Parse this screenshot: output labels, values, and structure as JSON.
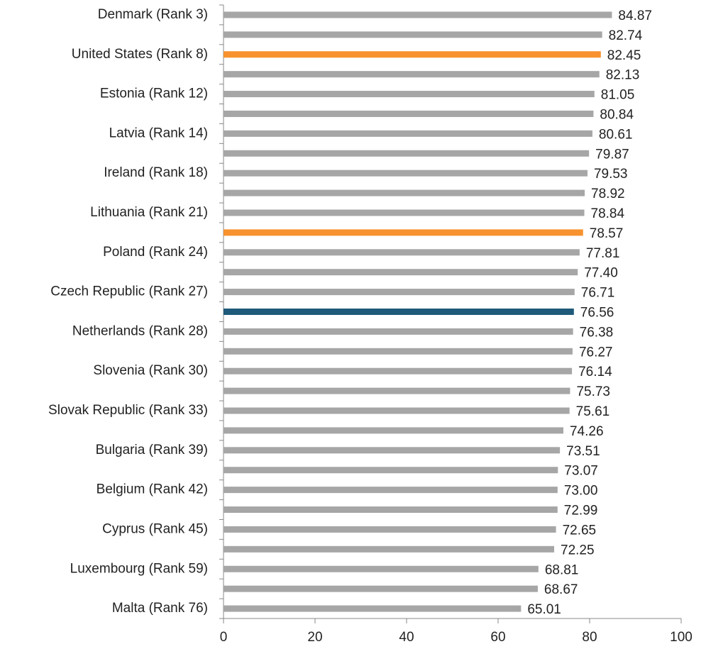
{
  "chart_data": {
    "type": "hbar",
    "categories": [
      "Denmark (Rank 3)",
      null,
      "United States (Rank 8)",
      null,
      "Estonia (Rank 12)",
      null,
      "Latvia (Rank 14)",
      null,
      "Ireland (Rank 18)",
      null,
      "Lithuania (Rank 21)",
      null,
      "Poland (Rank 24)",
      null,
      "Czech Republic (Rank 27)",
      null,
      "Netherlands (Rank 28)",
      null,
      "Slovenia (Rank 30)",
      null,
      "Slovak Republic (Rank 33)",
      null,
      "Bulgaria (Rank 39)",
      null,
      "Belgium (Rank 42)",
      null,
      "Cyprus (Rank 45)",
      null,
      "Luxembourg (Rank 59)",
      null,
      "Malta (Rank 76)"
    ],
    "values": [
      84.87,
      82.74,
      82.45,
      82.13,
      81.05,
      80.84,
      80.61,
      79.87,
      79.53,
      78.92,
      78.84,
      78.57,
      77.81,
      77.4,
      76.71,
      76.56,
      76.38,
      76.27,
      76.14,
      75.73,
      75.61,
      74.26,
      73.51,
      73.07,
      73.0,
      72.99,
      72.65,
      72.25,
      68.81,
      68.67,
      65.01
    ],
    "value_labels": [
      "84.87",
      "82.74",
      "82.45",
      "82.13",
      "81.05",
      "80.84",
      "80.61",
      "79.87",
      "79.53",
      "78.92",
      "78.84",
      "78.57",
      "77.81",
      "77.40",
      "76.71",
      "76.56",
      "76.38",
      "76.27",
      "76.14",
      "75.73",
      "75.61",
      "74.26",
      "73.51",
      "73.07",
      "73.00",
      "72.99",
      "72.65",
      "72.25",
      "68.81",
      "68.67",
      "65.01"
    ],
    "colors": [
      "#a6a6a6",
      "#a6a6a6",
      "#f7922e",
      "#a6a6a6",
      "#a6a6a6",
      "#a6a6a6",
      "#a6a6a6",
      "#a6a6a6",
      "#a6a6a6",
      "#a6a6a6",
      "#a6a6a6",
      "#f7922e",
      "#a6a6a6",
      "#a6a6a6",
      "#a6a6a6",
      "#1f5a7a",
      "#a6a6a6",
      "#a6a6a6",
      "#a6a6a6",
      "#a6a6a6",
      "#a6a6a6",
      "#a6a6a6",
      "#a6a6a6",
      "#a6a6a6",
      "#a6a6a6",
      "#a6a6a6",
      "#a6a6a6",
      "#a6a6a6",
      "#a6a6a6",
      "#a6a6a6",
      "#a6a6a6"
    ],
    "xlim": [
      0,
      100
    ],
    "xticks": [
      0,
      20,
      40,
      60,
      80,
      100
    ]
  }
}
